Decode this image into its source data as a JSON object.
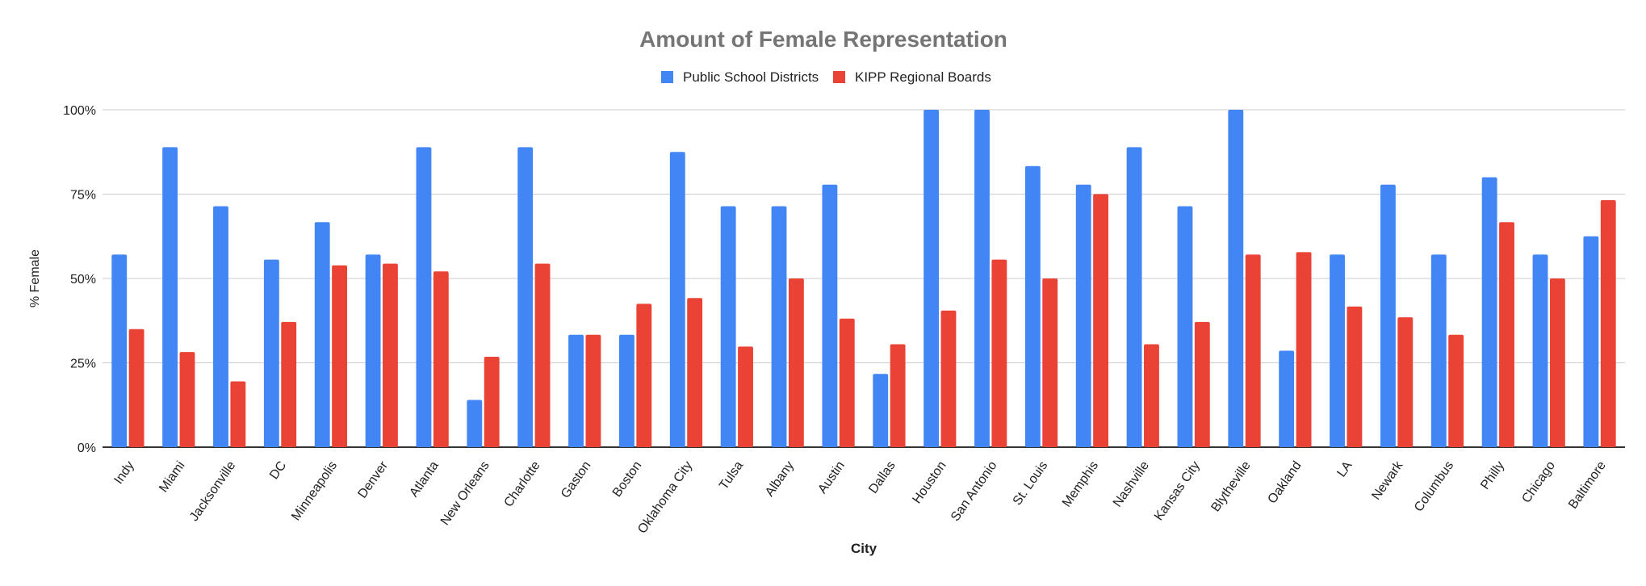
{
  "chart_data": {
    "type": "bar",
    "title": "Amount of Female Representation",
    "xlabel": "City",
    "ylabel": "% Female",
    "ylim": [
      0,
      100
    ],
    "yticks": [
      "0%",
      "25%",
      "50%",
      "75%",
      "100%"
    ],
    "grid": true,
    "legend_placement": "top",
    "categories": [
      "Indy",
      "Miami",
      "Jacksonville",
      "DC",
      "Minneapolis",
      "Denver",
      "Atlanta",
      "New Orleans",
      "Charlotte",
      "Gaston",
      "Boston",
      "Oklahoma City",
      "Tulsa",
      "Albany",
      "Austin",
      "Dallas",
      "Houston",
      "San Antonio",
      "St. Louis",
      "Memphis",
      "Nashville",
      "Kansas City",
      "Blytheville",
      "Oakland",
      "LA",
      "Newark",
      "Columbus",
      "Philly",
      "Chicago",
      "Baltimore"
    ],
    "series": [
      {
        "name": "Public School Districts",
        "color": "#4285f4",
        "values": [
          57.1,
          88.9,
          71.4,
          55.6,
          66.7,
          57.1,
          88.9,
          14.0,
          88.9,
          33.3,
          33.3,
          87.5,
          71.4,
          71.4,
          77.8,
          21.7,
          100,
          100,
          83.3,
          77.8,
          88.9,
          71.4,
          100,
          28.6,
          57.1,
          77.8,
          57.1,
          80.0,
          57.1,
          62.5
        ]
      },
      {
        "name": "KIPP Regional Boards",
        "color": "#ea4335",
        "values": [
          35.0,
          28.2,
          19.5,
          37.1,
          53.9,
          54.4,
          52.1,
          26.8,
          54.4,
          33.3,
          42.5,
          44.2,
          29.8,
          50.0,
          38.1,
          30.5,
          40.5,
          55.6,
          50.0,
          75.0,
          30.5,
          37.1,
          57.1,
          57.8,
          41.7,
          38.5,
          33.3,
          66.7,
          50.0,
          73.2
        ]
      }
    ]
  }
}
